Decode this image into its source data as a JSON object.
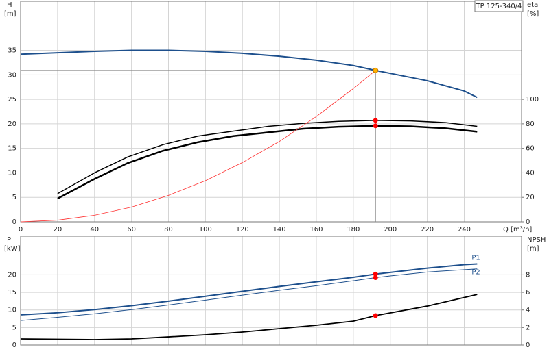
{
  "chart_data": [
    {
      "type": "line",
      "title": "TP 125-340/4",
      "xlabel": "Q [m³/h]",
      "ylabel": "H",
      "yunit": "[m]",
      "y2label": "eta",
      "y2unit": "[%]",
      "xlim": [
        0,
        271
      ],
      "xticks": [
        0,
        20,
        40,
        60,
        80,
        100,
        120,
        140,
        160,
        180,
        200,
        220,
        240
      ],
      "ylim": [
        0,
        45
      ],
      "yticks": [
        0,
        5,
        10,
        15,
        20,
        25,
        30,
        35
      ],
      "y2lim": [
        0,
        180
      ],
      "y2ticks": [
        0,
        20,
        40,
        60,
        80,
        100
      ],
      "grid": true,
      "series": [
        {
          "color": "#1d4f8c",
          "width": 2,
          "x": [
            0,
            20,
            40,
            60,
            80,
            100,
            120,
            140,
            160,
            180,
            192,
            200,
            220,
            240,
            247
          ],
          "values": [
            34.2,
            34.5,
            34.8,
            35.0,
            35.0,
            34.8,
            34.4,
            33.8,
            33.0,
            31.9,
            30.9,
            30.3,
            28.8,
            26.7,
            25.4
          ]
        },
        {
          "color": "#000000",
          "width": 1.5,
          "axis": "y2",
          "x": [
            20,
            40,
            58,
            77,
            96,
            115,
            134,
            153,
            172,
            192,
            211,
            230,
            247
          ],
          "values": [
            23,
            40,
            53,
            63,
            70,
            74,
            78,
            80.4,
            82,
            82.8,
            82.4,
            81,
            78
          ]
        },
        {
          "color": "#000000",
          "width": 2.5,
          "axis": "y2",
          "x": [
            20,
            40,
            58,
            77,
            96,
            115,
            134,
            153,
            172,
            192,
            211,
            230,
            247
          ],
          "values": [
            19,
            35,
            48,
            58,
            65,
            70,
            73,
            76,
            77.6,
            78.4,
            78,
            76.4,
            73.6
          ]
        },
        {
          "color": "#ff3030",
          "width": 0.8,
          "x": [
            0,
            20,
            40,
            60,
            80,
            100,
            120,
            140,
            160,
            180,
            192
          ],
          "values": [
            0,
            0.34,
            1.34,
            3.0,
            5.4,
            8.4,
            12.1,
            16.4,
            21.5,
            27.2,
            30.9
          ]
        }
      ],
      "operating_point": {
        "x": 192,
        "y": 30.9
      },
      "markers": [
        {
          "x": 192,
          "y": 30.9,
          "color": "#ffb300"
        },
        {
          "x": 192,
          "y": 82.8,
          "axis": "y2",
          "color": "#ff0000"
        },
        {
          "x": 192,
          "y": 78.4,
          "axis": "y2",
          "color": "#ff0000"
        }
      ]
    },
    {
      "type": "line",
      "ylabel": "P",
      "yunit": "[kW]",
      "y2label": "NPSH",
      "y2unit": "[m]",
      "xlim": [
        0,
        271
      ],
      "xticks": [
        0,
        20,
        40,
        60,
        80,
        100,
        120,
        140,
        160,
        180,
        200,
        220,
        240
      ],
      "xtick_labels": false,
      "ylim": [
        0,
        31
      ],
      "yticks": [
        0,
        5,
        10,
        15,
        20
      ],
      "y2lim": [
        0,
        12.4
      ],
      "y2ticks": [
        0,
        2,
        4,
        6,
        8
      ],
      "grid": true,
      "series": [
        {
          "name": "P1",
          "color": "#1d4f8c",
          "width": 2,
          "x": [
            0,
            20,
            40,
            60,
            80,
            100,
            120,
            140,
            160,
            180,
            192,
            200,
            220,
            240,
            247
          ],
          "values": [
            8.6,
            9.2,
            10.1,
            11.2,
            12.5,
            13.9,
            15.3,
            16.7,
            18.0,
            19.3,
            20.2,
            20.7,
            21.9,
            22.9,
            23.1
          ]
        },
        {
          "name": "P2",
          "color": "#1d4f8c",
          "width": 1,
          "x": [
            0,
            20,
            40,
            60,
            80,
            100,
            120,
            140,
            160,
            180,
            192,
            200,
            220,
            247
          ],
          "values": [
            7.0,
            7.9,
            8.9,
            10.1,
            11.4,
            12.8,
            14.2,
            15.6,
            16.9,
            18.3,
            19.2,
            19.7,
            20.8,
            21.7
          ]
        },
        {
          "color": "#000000",
          "width": 1.8,
          "axis": "y2",
          "x": [
            0,
            40,
            60,
            80,
            100,
            120,
            140,
            160,
            180,
            192,
            220,
            247
          ],
          "values": [
            0.7,
            0.62,
            0.7,
            0.93,
            1.17,
            1.48,
            1.87,
            2.26,
            2.72,
            3.35,
            4.44,
            5.76
          ]
        }
      ],
      "markers": [
        {
          "x": 192,
          "y": 20.2,
          "color": "#ff0000"
        },
        {
          "x": 192,
          "y": 19.2,
          "color": "#ff0000"
        },
        {
          "x": 192,
          "y": 3.35,
          "axis": "y2",
          "color": "#ff0000"
        }
      ]
    }
  ]
}
